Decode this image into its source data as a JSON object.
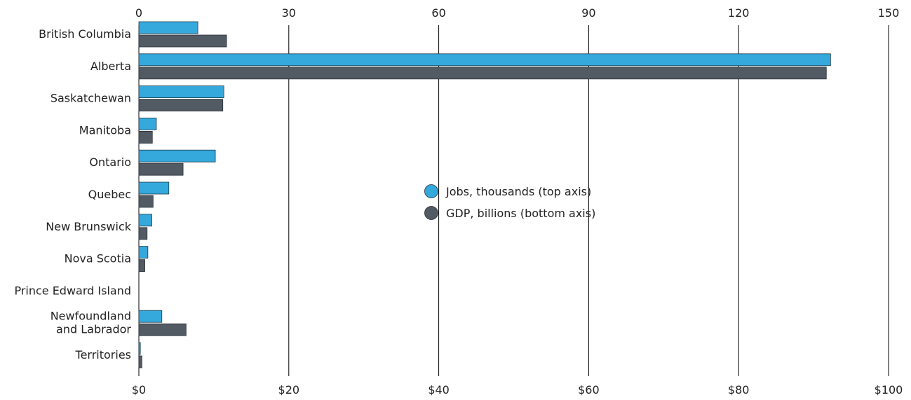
{
  "chart_data": {
    "type": "bar",
    "orientation": "horizontal",
    "categories": [
      "British Columbia",
      "Alberta",
      "Saskatchewan",
      "Manitoba",
      "Ontario",
      "Quebec",
      "New Brunswick",
      "Nova Scotia",
      "Prince Edward Island",
      "Newfoundland\nand Labrador",
      "Territories"
    ],
    "series": [
      {
        "name": "Jobs, thousands (top axis)",
        "axis": "top",
        "color": "#35a8dc",
        "values": [
          11.8,
          138.4,
          17.0,
          3.5,
          15.3,
          6.0,
          2.6,
          1.8,
          0.0,
          4.6,
          0.3
        ]
      },
      {
        "name": "GDP, billions (bottom axis)",
        "axis": "bottom",
        "color": "#525b64",
        "values": [
          11.7,
          91.7,
          11.2,
          1.8,
          5.9,
          1.9,
          1.1,
          0.8,
          0.0,
          6.3,
          0.4
        ]
      }
    ],
    "top_axis": {
      "min": 0,
      "max": 150,
      "ticks": [
        "0",
        "30",
        "60",
        "90",
        "120",
        "150"
      ]
    },
    "bottom_axis": {
      "min": 0,
      "max": 100,
      "ticks": [
        "$0",
        "$20",
        "$40",
        "$60",
        "$80",
        "$100"
      ]
    },
    "grid": "vertical",
    "legend": "center"
  }
}
